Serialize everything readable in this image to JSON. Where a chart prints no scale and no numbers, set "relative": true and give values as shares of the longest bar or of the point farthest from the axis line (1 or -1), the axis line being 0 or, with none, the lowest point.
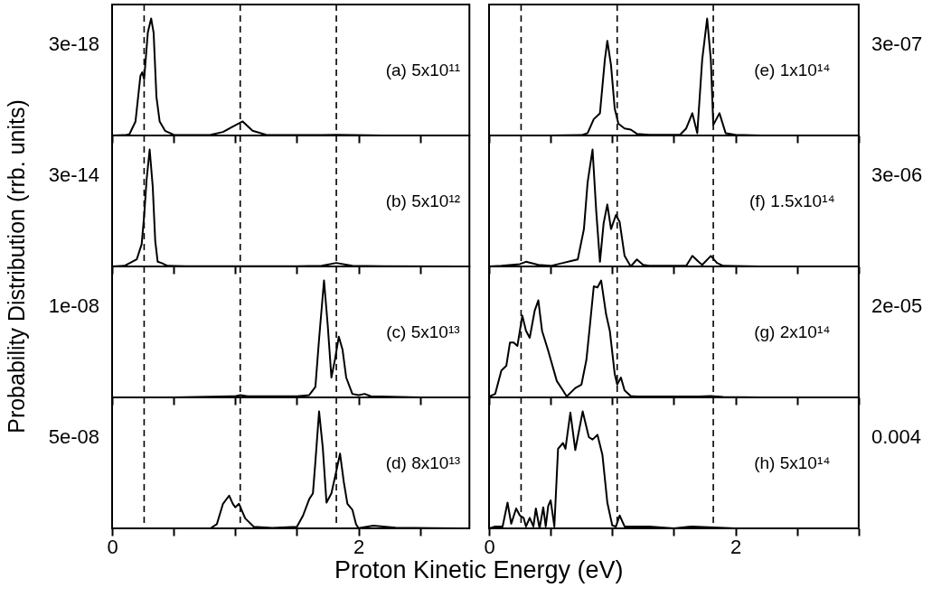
{
  "chart_data": [
    {
      "type": "line",
      "relative": true,
      "annotations": [
        "3e-18",
        "(a) 5x10¹¹"
      ],
      "tick_labels": false,
      "x": [
        0,
        0.1,
        0.14,
        0.19,
        0.23,
        0.245,
        0.26,
        0.29,
        0.317,
        0.337,
        0.36,
        0.386,
        0.43,
        0.5,
        0.6,
        0.8,
        0.9,
        0.97,
        1.06,
        1.14,
        1.25,
        1.4,
        1.7,
        1.82,
        1.95,
        2.2,
        2.9
      ],
      "series": [
        {
          "color": "#000000",
          "values": [
            0,
            0.003,
            0.01,
            0.12,
            0.51,
            0.54,
            0.48,
            0.88,
            1,
            0.88,
            0.33,
            0.12,
            0.04,
            0.006,
            0.003,
            0.006,
            0.03,
            0.07,
            0.12,
            0.04,
            0.006,
            0.003,
            0.003,
            0.006,
            0.003,
            0,
            0
          ]
        }
      ],
      "xlim": [
        0,
        2.9
      ],
      "xticks": [
        {
          "value": 0,
          "label": null
        },
        {
          "value": 0.5,
          "label": null
        },
        {
          "value": 1,
          "label": null
        },
        {
          "value": 1.5,
          "label": null
        },
        {
          "value": 2,
          "label": null
        },
        {
          "value": 2.5,
          "label": null
        }
      ],
      "ref_lines": [
        {
          "axis": "x",
          "value": 0.26,
          "line_style": "dashed"
        },
        {
          "axis": "x",
          "value": 1.04,
          "line_style": "dashed"
        },
        {
          "axis": "x",
          "value": 1.82,
          "line_style": "dashed"
        }
      ]
    },
    {
      "type": "line",
      "relative": true,
      "annotations": [
        "3e-14",
        "(b) 5x10¹²"
      ],
      "tick_labels": false,
      "ylabel": "Probability Distribution (rrb. units)",
      "x": [
        0,
        0.1,
        0.2,
        0.24,
        0.26,
        0.28,
        0.305,
        0.33,
        0.35,
        0.37,
        0.4,
        0.45,
        0.6,
        1.0,
        1.5,
        1.7,
        1.82,
        1.95,
        2.2,
        2.9
      ],
      "series": [
        {
          "color": "#000000",
          "values": [
            0,
            0.005,
            0.06,
            0.19,
            0.43,
            0.74,
            1,
            0.68,
            0.22,
            0.04,
            0.03,
            0.005,
            0.002,
            0.002,
            0.002,
            0.005,
            0.03,
            0.005,
            0.002,
            0
          ]
        }
      ],
      "xlim": [
        0,
        2.9
      ],
      "xticks": [
        {
          "value": 0,
          "label": null
        },
        {
          "value": 0.5,
          "label": null
        },
        {
          "value": 1,
          "label": null
        },
        {
          "value": 1.5,
          "label": null
        },
        {
          "value": 2,
          "label": null
        },
        {
          "value": 2.5,
          "label": null
        }
      ],
      "ref_lines": [
        {
          "axis": "x",
          "value": 0.26,
          "line_style": "dashed"
        },
        {
          "axis": "x",
          "value": 1.04,
          "line_style": "dashed"
        },
        {
          "axis": "x",
          "value": 1.82,
          "line_style": "dashed"
        }
      ]
    },
    {
      "type": "line",
      "relative": true,
      "annotations": [
        "1e-08",
        "(c) 5x10¹³"
      ],
      "tick_labels": false,
      "x": [
        0,
        0.5,
        1.0,
        1.04,
        1.1,
        1.5,
        1.6,
        1.65,
        1.68,
        1.72,
        1.75,
        1.78,
        1.81,
        1.84,
        1.87,
        1.9,
        1.95,
        2.0,
        2.05,
        2.1,
        2.5,
        2.9
      ],
      "series": [
        {
          "color": "#000000",
          "values": [
            0,
            0,
            0.01,
            0.02,
            0.01,
            0.01,
            0.02,
            0.09,
            0.5,
            1,
            0.62,
            0.17,
            0.33,
            0.52,
            0.41,
            0.17,
            0.03,
            0.02,
            0.03,
            0.01,
            0,
            0
          ]
        }
      ],
      "xlim": [
        0,
        2.9
      ],
      "xticks": [
        {
          "value": 0,
          "label": null
        },
        {
          "value": 0.5,
          "label": null
        },
        {
          "value": 1,
          "label": null
        },
        {
          "value": 1.5,
          "label": null
        },
        {
          "value": 2,
          "label": null
        },
        {
          "value": 2.5,
          "label": null
        }
      ],
      "ref_lines": [
        {
          "axis": "x",
          "value": 0.26,
          "line_style": "dashed"
        },
        {
          "axis": "x",
          "value": 1.04,
          "line_style": "dashed"
        },
        {
          "axis": "x",
          "value": 1.82,
          "line_style": "dashed"
        }
      ]
    },
    {
      "type": "line",
      "relative": true,
      "annotations": [
        "5e-08",
        "(d) 8x10¹³"
      ],
      "tick_labels": "x",
      "xlabel": "Proton Kinetic Energy (eV)",
      "x": [
        0,
        0.5,
        0.8,
        0.85,
        0.9,
        0.95,
        0.98,
        1.0,
        1.03,
        1.08,
        1.15,
        1.3,
        1.5,
        1.55,
        1.6,
        1.63,
        1.65,
        1.68,
        1.71,
        1.74,
        1.78,
        1.82,
        1.85,
        1.88,
        1.91,
        1.95,
        1.98,
        2.0,
        2.12,
        2.3,
        2.6,
        2.9
      ],
      "series": [
        {
          "color": "#000000",
          "values": [
            0,
            0,
            0.002,
            0.035,
            0.21,
            0.28,
            0.21,
            0.18,
            0.21,
            0.086,
            0.014,
            0.004,
            0.014,
            0.11,
            0.25,
            0.3,
            0.57,
            1,
            0.69,
            0.22,
            0.3,
            0.49,
            0.64,
            0.4,
            0.21,
            0.16,
            0.035,
            0.002,
            0.024,
            0.006,
            0.002,
            0
          ]
        }
      ],
      "xlim": [
        0,
        2.9
      ],
      "xticks": [
        {
          "value": 0,
          "label": "0"
        },
        {
          "value": 0.5,
          "label": null
        },
        {
          "value": 1,
          "label": null
        },
        {
          "value": 1.5,
          "label": null
        },
        {
          "value": 2,
          "label": "2"
        },
        {
          "value": 2.5,
          "label": null
        }
      ],
      "ref_lines": [
        {
          "axis": "x",
          "value": 0.26,
          "line_style": "dashed"
        },
        {
          "axis": "x",
          "value": 1.04,
          "line_style": "dashed"
        },
        {
          "axis": "x",
          "value": 1.82,
          "line_style": "dashed"
        }
      ]
    },
    {
      "type": "line",
      "relative": true,
      "annotations": [
        "3e-07",
        "(e) 1x10¹⁴"
      ],
      "tick_labels": false,
      "x": [
        0,
        0.5,
        0.75,
        0.8,
        0.85,
        0.9,
        0.94,
        0.96,
        0.99,
        1.02,
        1.05,
        1.1,
        1.15,
        1.2,
        1.3,
        1.55,
        1.6,
        1.65,
        1.69,
        1.73,
        1.77,
        1.8,
        1.82,
        1.87,
        1.92,
        2.0,
        2.2,
        3.0
      ],
      "series": [
        {
          "color": "#000000",
          "values": [
            0,
            0,
            0.003,
            0.02,
            0.14,
            0.19,
            0.65,
            0.81,
            0.6,
            0.23,
            0.1,
            0.06,
            0.05,
            0.014,
            0.006,
            0.006,
            0.06,
            0.19,
            0.02,
            0.65,
            1,
            0.65,
            0.09,
            0.19,
            0.02,
            0.006,
            0,
            0
          ]
        }
      ],
      "xlim": [
        0,
        3
      ],
      "xticks": [
        {
          "value": 0,
          "label": null
        },
        {
          "value": 0.5,
          "label": null
        },
        {
          "value": 1,
          "label": null
        },
        {
          "value": 1.5,
          "label": null
        },
        {
          "value": 2,
          "label": null
        },
        {
          "value": 2.5,
          "label": null
        },
        {
          "value": 3,
          "label": null
        }
      ],
      "ref_lines": [
        {
          "axis": "x",
          "value": 0.26,
          "line_style": "dashed"
        },
        {
          "axis": "x",
          "value": 1.04,
          "line_style": "dashed"
        },
        {
          "axis": "x",
          "value": 1.82,
          "line_style": "dashed"
        }
      ]
    },
    {
      "type": "line",
      "relative": true,
      "annotations": [
        "3e-06",
        "(f) 1.5x10¹⁴"
      ],
      "tick_labels": false,
      "x": [
        0,
        0.1,
        0.25,
        0.3,
        0.4,
        0.5,
        0.6,
        0.68,
        0.72,
        0.77,
        0.8,
        0.84,
        0.87,
        0.9,
        0.93,
        0.96,
        0.99,
        1.03,
        1.06,
        1.1,
        1.15,
        1.2,
        1.25,
        1.3,
        1.6,
        1.65,
        1.7,
        1.73,
        1.8,
        1.85,
        1.9,
        2.2,
        3.0
      ],
      "series": [
        {
          "color": "#000000",
          "values": [
            0,
            0.005,
            0.02,
            0.04,
            0.014,
            0.005,
            0.03,
            0.05,
            0.06,
            0.32,
            0.72,
            1,
            0.47,
            0.04,
            0.37,
            0.53,
            0.32,
            0.44,
            0.38,
            0.09,
            0,
            0.06,
            0.014,
            0.005,
            0.005,
            0.09,
            0.04,
            0.014,
            0.09,
            0.03,
            0.005,
            0,
            0
          ]
        }
      ],
      "xlim": [
        0,
        3
      ],
      "xticks": [
        {
          "value": 0,
          "label": null
        },
        {
          "value": 0.5,
          "label": null
        },
        {
          "value": 1,
          "label": null
        },
        {
          "value": 1.5,
          "label": null
        },
        {
          "value": 2,
          "label": null
        },
        {
          "value": 2.5,
          "label": null
        },
        {
          "value": 3,
          "label": null
        }
      ],
      "ref_lines": [
        {
          "axis": "x",
          "value": 0.26,
          "line_style": "dashed"
        },
        {
          "axis": "x",
          "value": 1.04,
          "line_style": "dashed"
        },
        {
          "axis": "x",
          "value": 1.82,
          "line_style": "dashed"
        }
      ]
    },
    {
      "type": "line",
      "relative": true,
      "annotations": [
        "2e-05",
        "(g) 2x10¹⁴"
      ],
      "tick_labels": false,
      "x": [
        0,
        0.05,
        0.1,
        0.14,
        0.17,
        0.2,
        0.23,
        0.27,
        0.3,
        0.33,
        0.37,
        0.4,
        0.43,
        0.48,
        0.55,
        0.6,
        0.63,
        0.7,
        0.75,
        0.79,
        0.82,
        0.85,
        0.88,
        0.91,
        0.95,
        0.98,
        1.02,
        1.04,
        1.07,
        1.1,
        1.15,
        1.2,
        1.7,
        1.8,
        1.9,
        2.2,
        3.0
      ],
      "series": [
        {
          "color": "#000000",
          "values": [
            0.008,
            0.03,
            0.23,
            0.27,
            0.47,
            0.47,
            0.44,
            0.7,
            0.57,
            0.51,
            0.74,
            0.83,
            0.57,
            0.4,
            0.14,
            0.06,
            0.008,
            0.08,
            0.11,
            0.32,
            0.63,
            0.95,
            0.94,
            1,
            0.71,
            0.57,
            0.2,
            0.11,
            0.17,
            0.06,
            0.012,
            0.008,
            0.008,
            0.012,
            0.004,
            0,
            0
          ]
        }
      ],
      "xlim": [
        0,
        3
      ],
      "xticks": [
        {
          "value": 0,
          "label": null
        },
        {
          "value": 0.5,
          "label": null
        },
        {
          "value": 1,
          "label": null
        },
        {
          "value": 1.5,
          "label": null
        },
        {
          "value": 2,
          "label": null
        },
        {
          "value": 2.5,
          "label": null
        },
        {
          "value": 3,
          "label": null
        }
      ],
      "ref_lines": [
        {
          "axis": "x",
          "value": 0.26,
          "line_style": "dashed"
        },
        {
          "axis": "x",
          "value": 1.04,
          "line_style": "dashed"
        },
        {
          "axis": "x",
          "value": 1.82,
          "line_style": "dashed"
        }
      ]
    },
    {
      "type": "line",
      "relative": true,
      "annotations": [
        "0.004",
        "(h) 5x10¹⁴"
      ],
      "tick_labels": "x",
      "x": [
        0,
        0.05,
        0.11,
        0.15,
        0.18,
        0.22,
        0.25,
        0.28,
        0.3,
        0.33,
        0.36,
        0.38,
        0.41,
        0.44,
        0.46,
        0.48,
        0.5,
        0.53,
        0.56,
        0.6,
        0.62,
        0.66,
        0.7,
        0.76,
        0.81,
        0.84,
        0.88,
        0.92,
        0.96,
        1.0,
        1.03,
        1.06,
        1.1,
        1.3,
        1.5,
        1.65,
        2.0,
        3.0
      ],
      "series": [
        {
          "color": "#000000",
          "values": [
            0,
            0.016,
            0.016,
            0.22,
            0.04,
            0.17,
            0.11,
            0.09,
            0.016,
            0.09,
            0.016,
            0.17,
            0,
            0.18,
            0.016,
            0.19,
            0.24,
            0.016,
            0.68,
            0.73,
            0.68,
            0.99,
            0.67,
            1,
            0.78,
            0.76,
            0.8,
            0.63,
            0.22,
            0.025,
            0.016,
            0.11,
            0.016,
            0.016,
            0,
            0.016,
            0,
            0
          ]
        }
      ],
      "xlim": [
        0,
        3
      ],
      "xticks": [
        {
          "value": 0,
          "label": "0"
        },
        {
          "value": 0.5,
          "label": null
        },
        {
          "value": 1,
          "label": null
        },
        {
          "value": 1.5,
          "label": null
        },
        {
          "value": 2,
          "label": "2"
        },
        {
          "value": 2.5,
          "label": null
        },
        {
          "value": 3,
          "label": null
        }
      ],
      "ref_lines": [
        {
          "axis": "x",
          "value": 0.26,
          "line_style": "dashed"
        },
        {
          "axis": "x",
          "value": 1.04,
          "line_style": "dashed"
        },
        {
          "axis": "x",
          "value": 1.82,
          "line_style": "dashed"
        }
      ]
    }
  ]
}
